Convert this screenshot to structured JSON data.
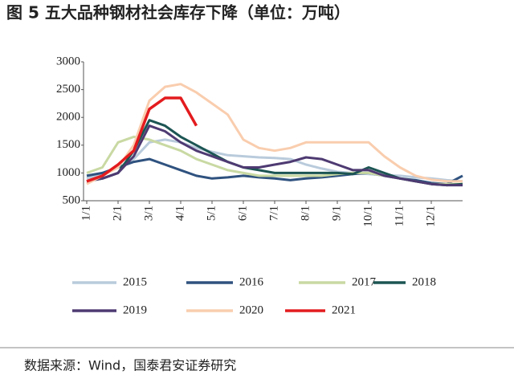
{
  "chart_data": {
    "type": "line",
    "title": "图 5 五大品种钢材社会库存下降（单位：万吨）",
    "source": "数据来源：Wind，国泰君安证券研究",
    "categories": [
      "1/1",
      null,
      "2/1",
      null,
      "3/1",
      null,
      "4/1",
      null,
      "5/1",
      null,
      "6/1",
      null,
      "7/1",
      null,
      "8/1",
      null,
      "9/1",
      null,
      "10/1",
      null,
      "11/1",
      null,
      "12/1",
      null,
      null
    ],
    "ylim": [
      500,
      3000
    ],
    "yticks": [
      500,
      1000,
      1500,
      2000,
      2500,
      3000
    ],
    "grid": false,
    "series": [
      {
        "name": "2015",
        "color": "#b9cbdc",
        "values": [
          900,
          1000,
          1100,
          1250,
          1550,
          1600,
          1550,
          1450,
          1380,
          1320,
          1300,
          1280,
          1270,
          1250,
          1150,
          1080,
          1020,
          1000,
          980,
          960,
          950,
          920,
          900,
          870,
          850
        ]
      },
      {
        "name": "2016",
        "color": "#2f527f",
        "values": [
          950,
          1000,
          1100,
          1200,
          1250,
          1150,
          1050,
          950,
          900,
          920,
          950,
          920,
          900,
          870,
          900,
          920,
          950,
          980,
          1000,
          950,
          900,
          870,
          820,
          800,
          950
        ]
      },
      {
        "name": "2017",
        "color": "#c9d9a3",
        "values": [
          1000,
          1100,
          1550,
          1650,
          1600,
          1500,
          1400,
          1250,
          1150,
          1050,
          1000,
          950,
          950,
          950,
          950,
          950,
          980,
          1000,
          1000,
          950,
          900,
          850,
          800,
          800,
          800
        ]
      },
      {
        "name": "2018",
        "color": "#1c5553",
        "values": [
          850,
          900,
          1000,
          1400,
          1950,
          1850,
          1650,
          1500,
          1350,
          1200,
          1100,
          1050,
          1000,
          1000,
          1000,
          1000,
          1000,
          980,
          1100,
          1000,
          900,
          850,
          800,
          780,
          800
        ]
      },
      {
        "name": "2019",
        "color": "#4e3a72",
        "values": [
          850,
          900,
          1000,
          1300,
          1850,
          1750,
          1550,
          1400,
          1300,
          1200,
          1100,
          1100,
          1150,
          1200,
          1280,
          1250,
          1150,
          1050,
          1050,
          950,
          900,
          850,
          800,
          780,
          780
        ]
      },
      {
        "name": "2020",
        "color": "#f9cdae",
        "values": [
          800,
          950,
          1100,
          1500,
          2300,
          2550,
          2600,
          2450,
          2250,
          2050,
          1600,
          1450,
          1400,
          1450,
          1550,
          1550,
          1550,
          1550,
          1550,
          1300,
          1100,
          950,
          880,
          850,
          850
        ]
      },
      {
        "name": "2021",
        "color": "#e31b1e",
        "values": [
          850,
          950,
          1150,
          1400,
          2150,
          2350,
          2350,
          1850,
          null,
          null,
          null,
          null,
          null,
          null,
          null,
          null,
          null,
          null,
          null,
          null,
          null,
          null,
          null,
          null,
          null
        ]
      }
    ]
  }
}
